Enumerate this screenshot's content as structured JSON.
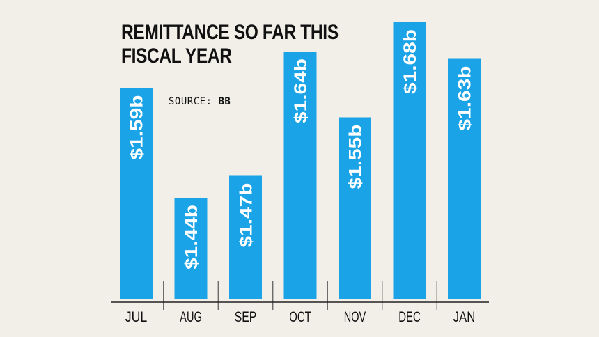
{
  "title_lines": [
    "REMITTANCE SO FAR THIS",
    "FISCAL YEAR"
  ],
  "source": {
    "label": "SOURCE:",
    "value": "BB"
  },
  "colors": {
    "bar": "#1aa3e6",
    "background": "#f2efe8",
    "text": "#111111",
    "label": "#ffffff"
  },
  "chart_data": {
    "type": "bar",
    "title": "REMITTANCE SO FAR THIS FISCAL YEAR",
    "categories": [
      "JUL",
      "AUG",
      "SEP",
      "OCT",
      "NOV",
      "DEC",
      "JAN"
    ],
    "values": [
      1.59,
      1.44,
      1.47,
      1.64,
      1.55,
      1.68,
      1.63
    ],
    "data_labels": [
      "$1.59b",
      "$1.44b",
      "$1.47b",
      "$1.64b",
      "$1.55b",
      "$1.68b",
      "$1.63b"
    ],
    "xlabel": "",
    "ylabel": "",
    "grid": false,
    "legend": "none"
  }
}
